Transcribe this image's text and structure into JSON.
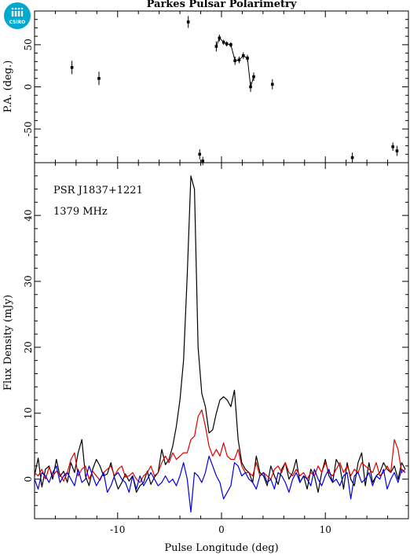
{
  "title": "Parkes Pulsar Polarimetry",
  "logo": {
    "text": "CSIRO",
    "color": "#00a9ce"
  },
  "colors": {
    "total": "#000000",
    "linear": "#e00000",
    "circular": "#0000e0"
  },
  "chart_data": [
    {
      "type": "scatter",
      "ylabel": "P.A. (deg.)",
      "xlim": [
        -18,
        18
      ],
      "ylim": [
        -90,
        90
      ],
      "yticks": [
        -50,
        0,
        50
      ],
      "points": [
        {
          "x": -14.4,
          "y": 23,
          "err": 8
        },
        {
          "x": -11.8,
          "y": 10,
          "err": 8
        },
        {
          "x": -3.2,
          "y": 77,
          "err": 7
        },
        {
          "x": -2.1,
          "y": -80,
          "err": 6
        },
        {
          "x": -1.8,
          "y": -88,
          "err": 5
        },
        {
          "x": -0.5,
          "y": 48,
          "err": 6
        },
        {
          "x": -0.2,
          "y": 58,
          "err": 4
        },
        {
          "x": 0.2,
          "y": 53,
          "err": 3
        },
        {
          "x": 0.5,
          "y": 51,
          "err": 3
        },
        {
          "x": 0.9,
          "y": 50,
          "err": 3
        },
        {
          "x": 1.3,
          "y": 31,
          "err": 5
        },
        {
          "x": 1.7,
          "y": 32,
          "err": 4
        },
        {
          "x": 2.1,
          "y": 37,
          "err": 4
        },
        {
          "x": 2.5,
          "y": 34,
          "err": 4
        },
        {
          "x": 2.8,
          "y": 0,
          "err": 6
        },
        {
          "x": 3.1,
          "y": 12,
          "err": 5
        },
        {
          "x": 4.9,
          "y": 3,
          "err": 6
        },
        {
          "x": 12.6,
          "y": -84,
          "err": 6
        },
        {
          "x": 16.5,
          "y": -71,
          "err": 5
        },
        {
          "x": 16.9,
          "y": -76,
          "err": 6
        }
      ],
      "connected_range": [
        -0.5,
        3.1
      ]
    },
    {
      "type": "line",
      "xlabel": "Pulse Longitude (deg)",
      "ylabel": "Flux Density (mJy)",
      "xlim": [
        -18,
        18
      ],
      "ylim": [
        -6,
        48
      ],
      "xticks": [
        -10,
        0,
        10
      ],
      "yticks": [
        0,
        10,
        20,
        30,
        40
      ],
      "annotations": [
        "PSR J1837+1221",
        "1379 MHz"
      ],
      "x_start": -18,
      "x_step": 0.35,
      "series": [
        {
          "key": "total",
          "values": [
            0.5,
            3.2,
            -1.2,
            1.5,
            2.0,
            0.0,
            3.0,
            0.4,
            1.2,
            -0.5,
            2.5,
            1.0,
            4.0,
            6.0,
            0.5,
            -1.0,
            1.5,
            3.0,
            2.0,
            0.5,
            0.8,
            2.5,
            0.2,
            -1.5,
            -0.5,
            0.8,
            -0.3,
            0.5,
            -2.0,
            -1.0,
            -0.5,
            1.2,
            -0.8,
            0.3,
            1.0,
            4.5,
            2.2,
            3.0,
            5.0,
            8.0,
            12.0,
            18.0,
            31.0,
            46.0,
            44.0,
            20.0,
            13.0,
            11.0,
            7.0,
            7.5,
            10.0,
            12.0,
            12.5,
            12.0,
            11.0,
            13.5,
            6.0,
            2.5,
            1.5,
            1.0,
            -0.5,
            3.5,
            1.0,
            0.5,
            -1.0,
            2.0,
            0.5,
            -0.8,
            1.5,
            2.5,
            0.0,
            1.0,
            3.0,
            -0.5,
            0.5,
            -1.5,
            1.5,
            0.5,
            -2.0,
            1.0,
            3.0,
            0.5,
            -0.5,
            3.0,
            2.0,
            -1.5,
            2.5,
            0.0,
            -1.0,
            2.5,
            4.0,
            -1.0,
            2.5,
            -0.5,
            0.5,
            1.0,
            2.5,
            1.5,
            1.0,
            2.0,
            0.0,
            2.5,
            1.5
          ]
        },
        {
          "key": "linear",
          "values": [
            1.0,
            0.5,
            1.5,
            0.0,
            1.8,
            0.5,
            1.2,
            0.8,
            -0.3,
            1.0,
            3.0,
            4.0,
            0.5,
            1.5,
            2.0,
            0.0,
            1.2,
            0.5,
            -0.2,
            1.0,
            1.5,
            2.0,
            0.5,
            1.5,
            2.0,
            0.3,
            0.5,
            1.0,
            0.0,
            -0.5,
            0.5,
            1.0,
            2.0,
            0.5,
            1.0,
            2.5,
            3.5,
            2.5,
            4.0,
            3.0,
            3.5,
            4.0,
            4.0,
            6.0,
            6.5,
            9.5,
            10.5,
            8.0,
            5.0,
            3.5,
            4.5,
            3.5,
            5.5,
            3.5,
            3.0,
            3.0,
            4.5,
            2.0,
            1.0,
            1.0,
            0.5,
            2.5,
            0.5,
            1.0,
            0.5,
            0.0,
            1.5,
            2.0,
            1.0,
            2.5,
            1.0,
            0.5,
            1.5,
            0.5,
            1.0,
            0.0,
            1.0,
            0.5,
            2.0,
            1.0,
            2.5,
            1.0,
            0.5,
            1.5,
            2.5,
            1.0,
            2.0,
            0.5,
            1.5,
            1.0,
            2.5,
            2.0,
            1.5,
            1.0,
            2.5,
            0.5,
            1.0,
            2.0,
            1.0,
            6.0,
            4.5,
            1.0,
            1.5
          ]
        },
        {
          "key": "circular",
          "values": [
            0.0,
            -1.5,
            1.0,
            0.5,
            -0.5,
            1.0,
            2.0,
            -0.5,
            0.5,
            1.0,
            0.0,
            -1.0,
            1.5,
            -0.5,
            0.0,
            2.0,
            0.5,
            -1.0,
            0.0,
            1.0,
            -2.0,
            -1.0,
            0.5,
            1.0,
            0.0,
            -0.5,
            -2.0,
            0.5,
            -1.5,
            0.5,
            -1.0,
            0.0,
            1.0,
            0.0,
            -1.0,
            -0.5,
            0.5,
            -0.5,
            0.0,
            -1.0,
            0.5,
            2.5,
            0.0,
            -5.0,
            1.0,
            0.5,
            -0.5,
            1.0,
            3.5,
            2.0,
            0.5,
            -0.5,
            -3.0,
            -2.0,
            -1.0,
            2.5,
            2.0,
            0.5,
            1.0,
            0.0,
            -0.5,
            -1.5,
            0.5,
            1.0,
            -0.5,
            0.0,
            -1.5,
            1.0,
            0.5,
            -0.5,
            -2.0,
            0.0,
            1.0,
            -0.5,
            0.5,
            0.0,
            -1.0,
            1.5,
            0.0,
            -1.0,
            0.5,
            1.5,
            -0.5,
            0.0,
            -1.0,
            0.5,
            1.0,
            -3.0,
            0.5,
            1.0,
            -0.5,
            0.0,
            1.0,
            -1.0,
            0.5,
            0.0,
            1.5,
            -1.5,
            0.0,
            1.0,
            -0.5,
            1.5,
            1.0
          ]
        }
      ]
    }
  ]
}
